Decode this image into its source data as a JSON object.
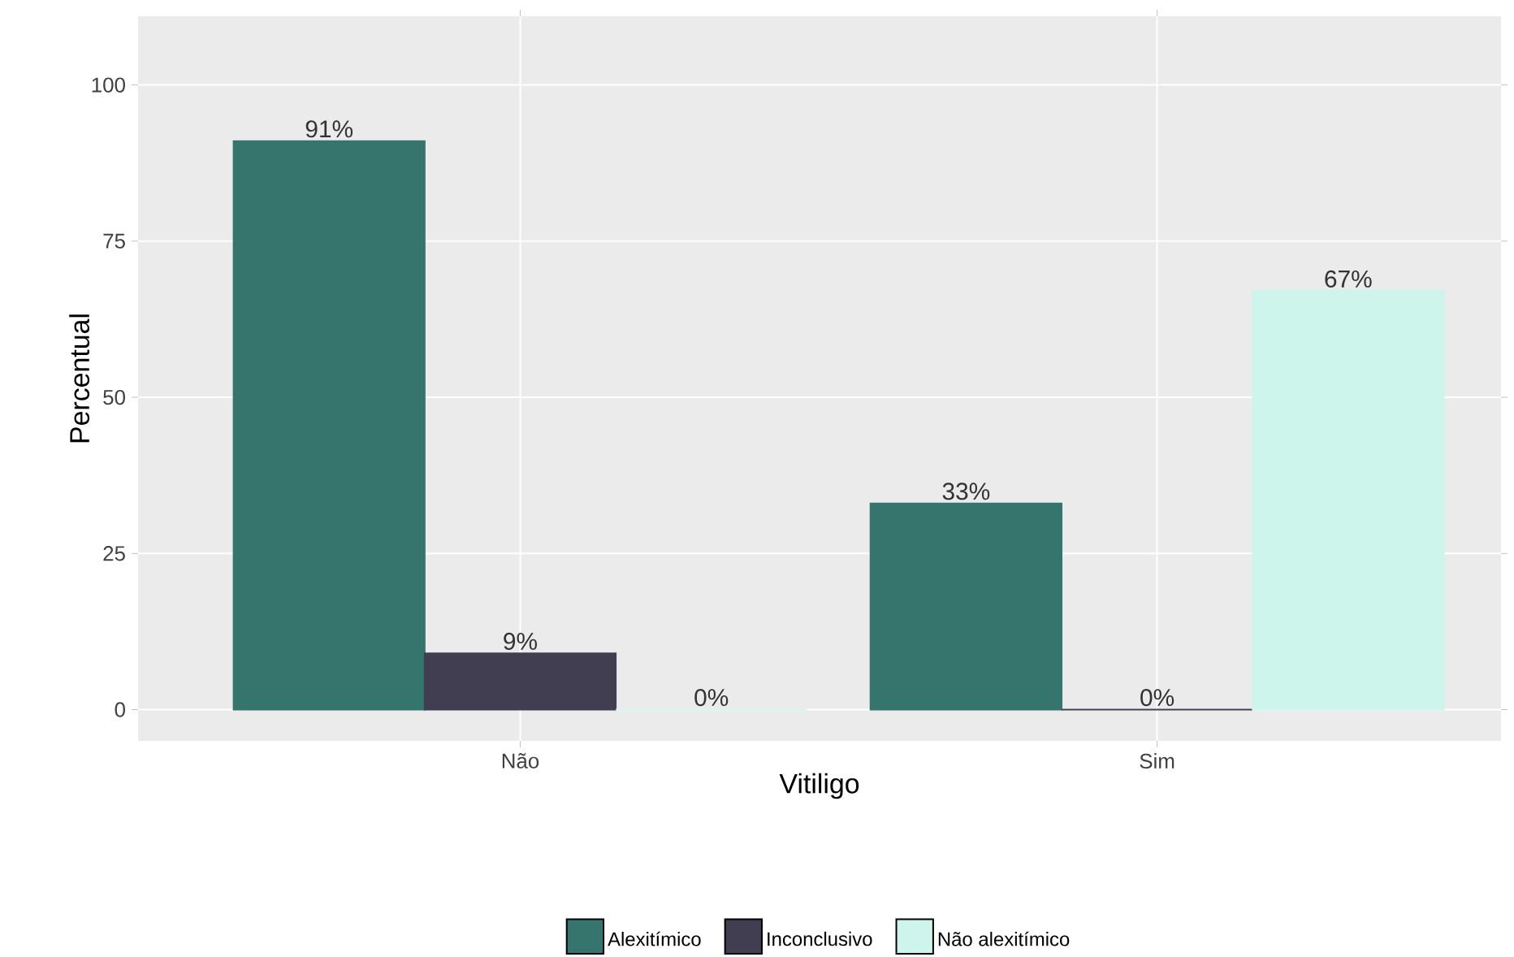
{
  "chart_data": {
    "type": "bar",
    "xlabel": "Vitiligo",
    "ylabel": "Percentual",
    "categories": [
      "Não",
      "Sim"
    ],
    "series": [
      {
        "name": "Alexitímico",
        "color": "#35756d",
        "values": [
          91,
          33
        ],
        "value_labels": [
          "91%",
          "33%"
        ]
      },
      {
        "name": "Inconclusivo",
        "color": "#403e50",
        "values": [
          9,
          0
        ],
        "value_labels": [
          "9%",
          "0%"
        ]
      },
      {
        "name": "Não alexitímico",
        "color": "#cdf5ec",
        "values": [
          0,
          67
        ],
        "value_labels": [
          "0%",
          "67%"
        ]
      }
    ],
    "ylim": [
      -5,
      111
    ],
    "yticks": [
      0,
      25,
      50,
      75,
      100
    ],
    "grid": true,
    "legend": "bottom"
  }
}
